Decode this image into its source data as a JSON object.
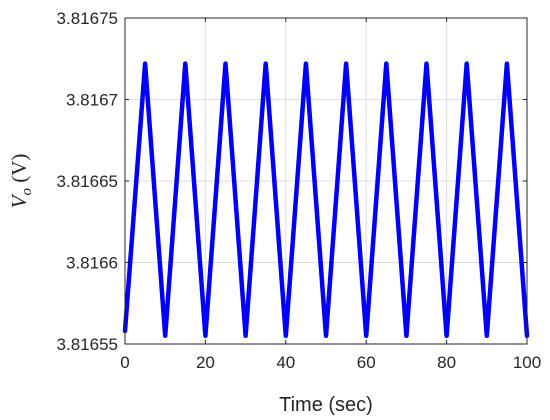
{
  "chart_data": {
    "type": "line",
    "title": "",
    "xlabel": "Time (sec)",
    "ylabel": {
      "main": "V",
      "sub": "o",
      "unit": " (V)"
    },
    "xlim": [
      0,
      100
    ],
    "ylim": [
      3.81655,
      3.81675
    ],
    "xticks": [
      0,
      20,
      40,
      60,
      80,
      100
    ],
    "xtick_labels": [
      "0",
      "20",
      "40",
      "60",
      "80",
      "100"
    ],
    "yticks": [
      3.81655,
      3.8166,
      3.81665,
      3.8167,
      3.81675
    ],
    "ytick_labels": [
      "3.81655",
      "3.8166",
      "3.81665",
      "3.8167",
      "3.81675"
    ],
    "grid": true,
    "series": [
      {
        "color": "#0000ff",
        "x": [
          0,
          5,
          10,
          15,
          20,
          25,
          30,
          35,
          40,
          45,
          50,
          55,
          60,
          65,
          70,
          75,
          80,
          85,
          90,
          95,
          100
        ],
        "y": [
          3.816558,
          3.816722,
          3.816555,
          3.816722,
          3.816555,
          3.816722,
          3.816555,
          3.816722,
          3.816555,
          3.816722,
          3.816555,
          3.816722,
          3.816555,
          3.816722,
          3.816555,
          3.816722,
          3.816555,
          3.816722,
          3.816555,
          3.816722,
          3.816555
        ]
      }
    ]
  }
}
